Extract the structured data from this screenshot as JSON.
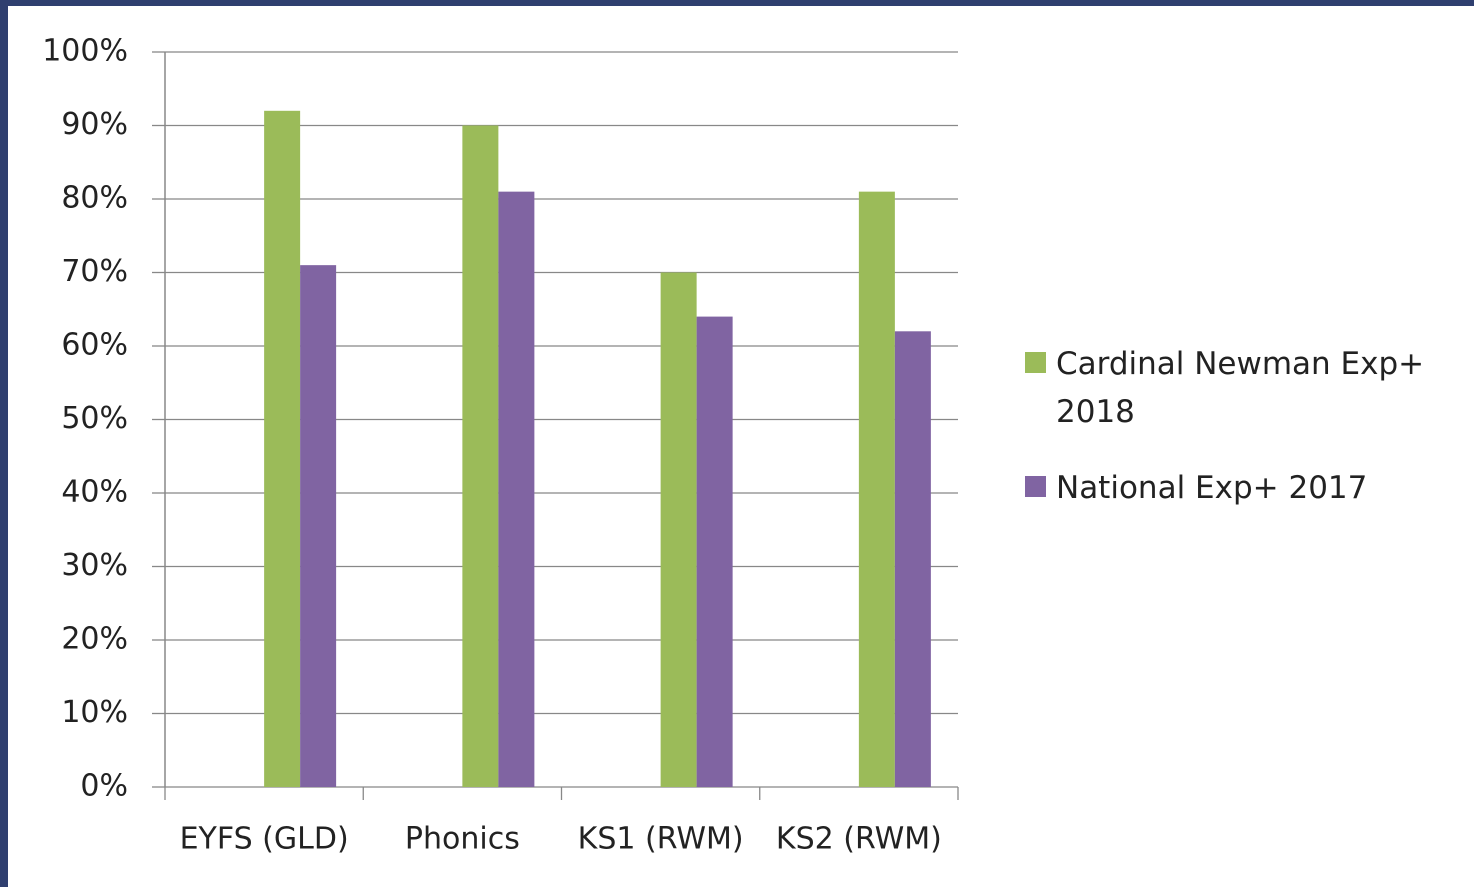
{
  "chart_data": {
    "type": "bar",
    "categories": [
      "EYFS (GLD)",
      "Phonics",
      "KS1 (RWM)",
      "KS2 (RWM)"
    ],
    "series": [
      {
        "name": "Cardinal Newman Exp+ 2018",
        "color": "#9bbb59",
        "values": [
          92,
          90,
          70,
          81
        ]
      },
      {
        "name": "National Exp+ 2017",
        "color": "#8064a2",
        "values": [
          71,
          81,
          64,
          62
        ]
      }
    ],
    "ylim": [
      0,
      100
    ],
    "yticks": [
      {
        "value": 0,
        "label": "0%"
      },
      {
        "value": 10,
        "label": "10%"
      },
      {
        "value": 20,
        "label": "20%"
      },
      {
        "value": 30,
        "label": "30%"
      },
      {
        "value": 40,
        "label": "40%"
      },
      {
        "value": 50,
        "label": "50%"
      },
      {
        "value": 60,
        "label": "60%"
      },
      {
        "value": 70,
        "label": "70%"
      },
      {
        "value": 80,
        "label": "80%"
      },
      {
        "value": 90,
        "label": "90%"
      },
      {
        "value": 100,
        "label": "100%"
      }
    ],
    "grid": true,
    "legend": "right"
  }
}
